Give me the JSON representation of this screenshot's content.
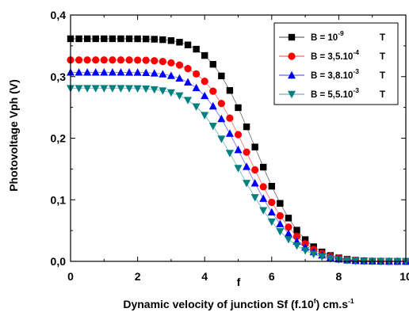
{
  "chart_data": {
    "type": "scatter",
    "title": "",
    "ylabel": "Photovoltage Vph (V)",
    "xlabel": {
      "prefix": "Dynamic velocity of junction Sf (f.10",
      "sup": "f",
      "middle": ") cm.s",
      "sup2": "-1"
    },
    "x_axis_letter": "f",
    "xlim": [
      0,
      10
    ],
    "ylim": [
      0,
      0.4
    ],
    "x_ticks": [
      0,
      2,
      4,
      6,
      8,
      10
    ],
    "x_tick_labels": [
      "0",
      "2",
      "4",
      "6",
      "8",
      "10"
    ],
    "y_ticks": [
      0,
      0.1,
      0.2,
      0.3,
      0.4
    ],
    "y_tick_labels": [
      "0,0",
      "0,1",
      "0,2",
      "0,3",
      "0,4"
    ],
    "legend_position": "top-right",
    "x": [
      0,
      0.25,
      0.5,
      0.75,
      1,
      1.25,
      1.5,
      1.75,
      2,
      2.25,
      2.5,
      2.75,
      3,
      3.25,
      3.5,
      3.75,
      4,
      4.25,
      4.5,
      4.75,
      5,
      5.25,
      5.5,
      5.75,
      6,
      6.25,
      6.5,
      6.75,
      7,
      7.25,
      7.5,
      7.75,
      8,
      8.25,
      8.5,
      8.75,
      9,
      9.25,
      9.5,
      9.75,
      10
    ],
    "series": [
      {
        "label": {
          "prefix": "B = 10",
          "sup": "-9",
          "suffix": "T"
        },
        "marker": "square",
        "color": "#000000",
        "values": [
          0.3615,
          0.3615,
          0.3615,
          0.3615,
          0.3615,
          0.3615,
          0.3615,
          0.3615,
          0.3614,
          0.3612,
          0.3608,
          0.36,
          0.3585,
          0.3559,
          0.3515,
          0.3446,
          0.3343,
          0.32,
          0.3011,
          0.2775,
          0.2496,
          0.2185,
          0.1857,
          0.153,
          0.122,
          0.0942,
          0.0703,
          0.0507,
          0.0353,
          0.0237,
          0.0153,
          0.0095,
          0.0057,
          0.0033,
          0.0018,
          0.0009,
          0.0004,
          0.0002,
          0.0001,
          0.0,
          0.0
        ]
      },
      {
        "label": {
          "prefix": "B = 3,5.10",
          "sup": "-4",
          "suffix": "T"
        },
        "marker": "circle",
        "color": "#ff0000",
        "values": [
          0.327,
          0.327,
          0.327,
          0.327,
          0.327,
          0.327,
          0.327,
          0.327,
          0.3268,
          0.3265,
          0.3258,
          0.3246,
          0.3224,
          0.3188,
          0.313,
          0.3044,
          0.2924,
          0.2764,
          0.2564,
          0.2326,
          0.2058,
          0.1773,
          0.1486,
          0.1211,
          0.0959,
          0.074,
          0.0556,
          0.0406,
          0.0287,
          0.0196,
          0.0128,
          0.0081,
          0.0049,
          0.0028,
          0.0015,
          0.0008,
          0.0004,
          0.0002,
          0.0001,
          0.0,
          0.0
        ]
      },
      {
        "label": {
          "prefix": "B = 3,8.10",
          "sup": "-3",
          "suffix": "T"
        },
        "marker": "triangle-up",
        "color": "#0000ff",
        "values": [
          0.307,
          0.307,
          0.307,
          0.307,
          0.307,
          0.307,
          0.307,
          0.3069,
          0.3068,
          0.3064,
          0.3056,
          0.3041,
          0.3015,
          0.2974,
          0.291,
          0.2817,
          0.2689,
          0.2521,
          0.2315,
          0.2076,
          0.1812,
          0.1538,
          0.127,
          0.1021,
          0.0798,
          0.0609,
          0.0452,
          0.0326,
          0.0228,
          0.0154,
          0.01,
          0.0062,
          0.0037,
          0.0021,
          0.0011,
          0.0006,
          0.0003,
          0.0001,
          0.0,
          0.0,
          0.0
        ]
      },
      {
        "label": {
          "prefix": "B = 5,5.10",
          "sup": "-3",
          "suffix": "T"
        },
        "marker": "triangle-down",
        "color": "#008080",
        "values": [
          0.281,
          0.281,
          0.281,
          0.281,
          0.281,
          0.281,
          0.2809,
          0.2808,
          0.2806,
          0.2801,
          0.279,
          0.2771,
          0.274,
          0.2691,
          0.2617,
          0.2512,
          0.2372,
          0.2196,
          0.1988,
          0.1756,
          0.1512,
          0.1269,
          0.1038,
          0.0827,
          0.0642,
          0.0485,
          0.0356,
          0.0254,
          0.0175,
          0.0116,
          0.0074,
          0.0045,
          0.0026,
          0.0014,
          0.0007,
          0.0004,
          0.0002,
          0.0001,
          0.0,
          0.0,
          0.0
        ]
      }
    ]
  }
}
